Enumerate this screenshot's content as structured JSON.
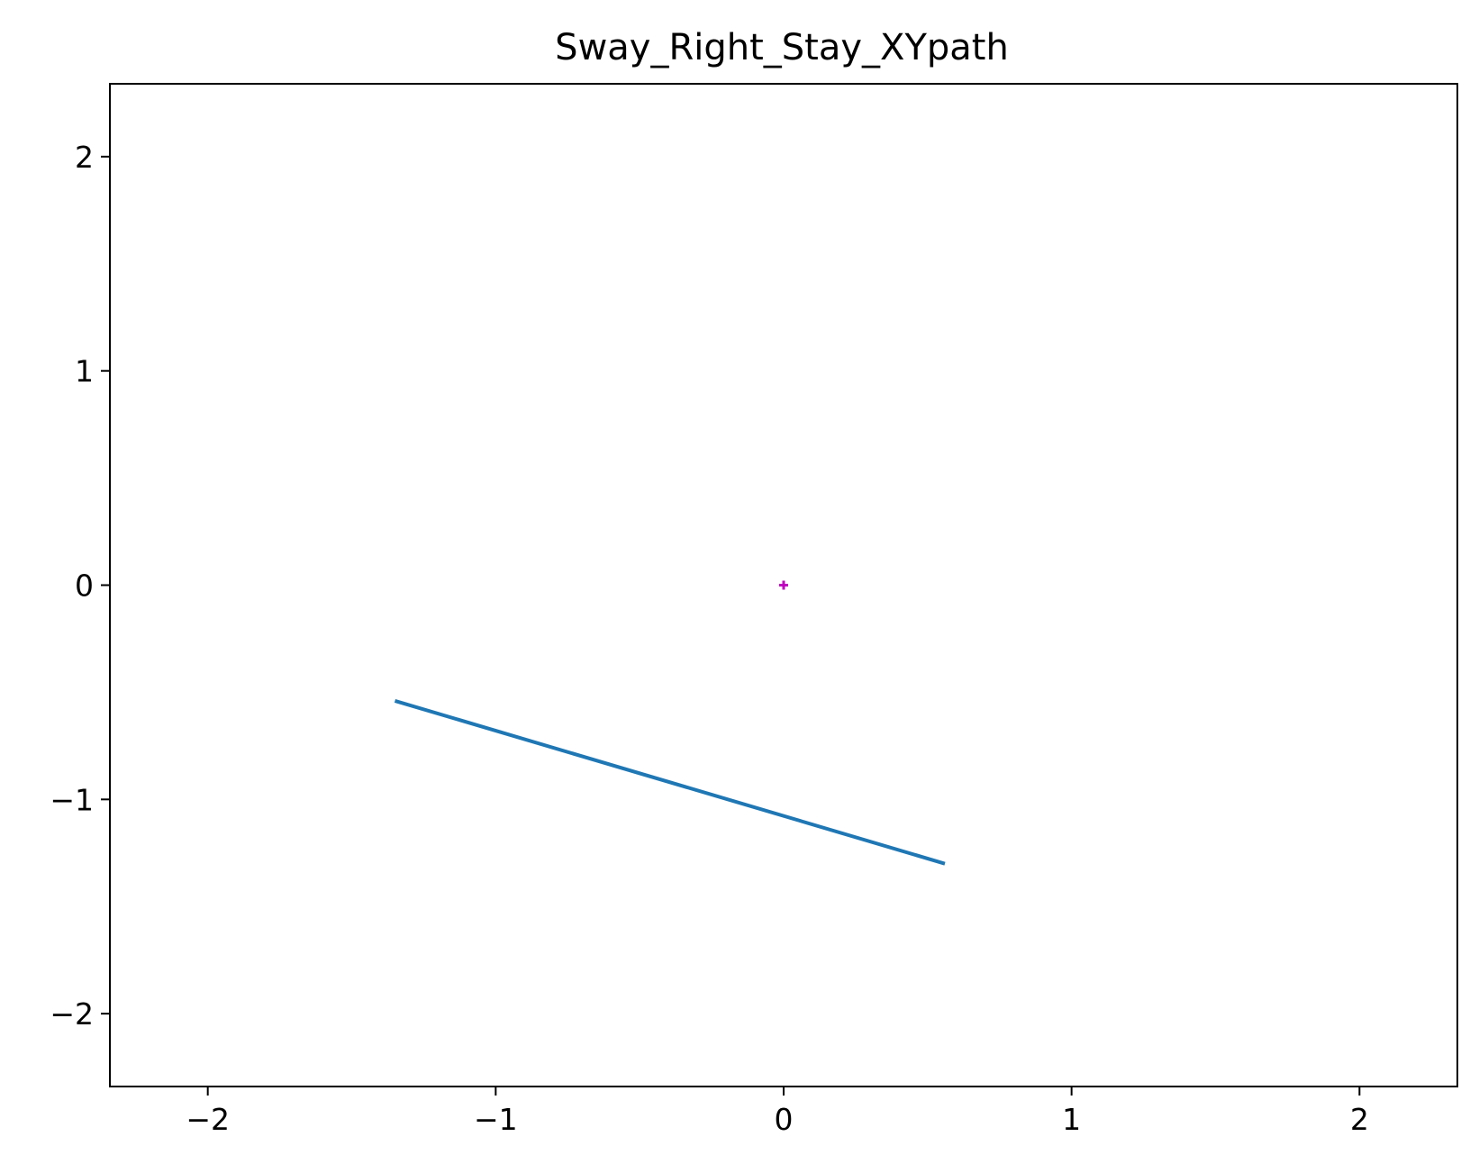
{
  "chart_data": {
    "type": "line",
    "title": "Sway_Right_Stay_XYpath",
    "xlabel": "",
    "ylabel": "",
    "xlim": [
      -2.34,
      2.34
    ],
    "ylim": [
      -2.34,
      2.34
    ],
    "xticks": [
      -2,
      -1,
      0,
      1,
      2
    ],
    "yticks": [
      -2,
      -1,
      0,
      1,
      2
    ],
    "xtick_labels": [
      "−2",
      "−1",
      "0",
      "1",
      "2"
    ],
    "ytick_labels": [
      "−2",
      "−1",
      "0",
      "1",
      "2"
    ],
    "grid": false,
    "series": [
      {
        "kind": "line",
        "color": "#1f77b4",
        "x": [
          -1.35,
          0.56
        ],
        "y": [
          -0.54,
          -1.3
        ]
      },
      {
        "kind": "marker",
        "marker": "+",
        "color": "#c000c0",
        "x": [
          0.0
        ],
        "y": [
          0.0
        ]
      }
    ]
  }
}
